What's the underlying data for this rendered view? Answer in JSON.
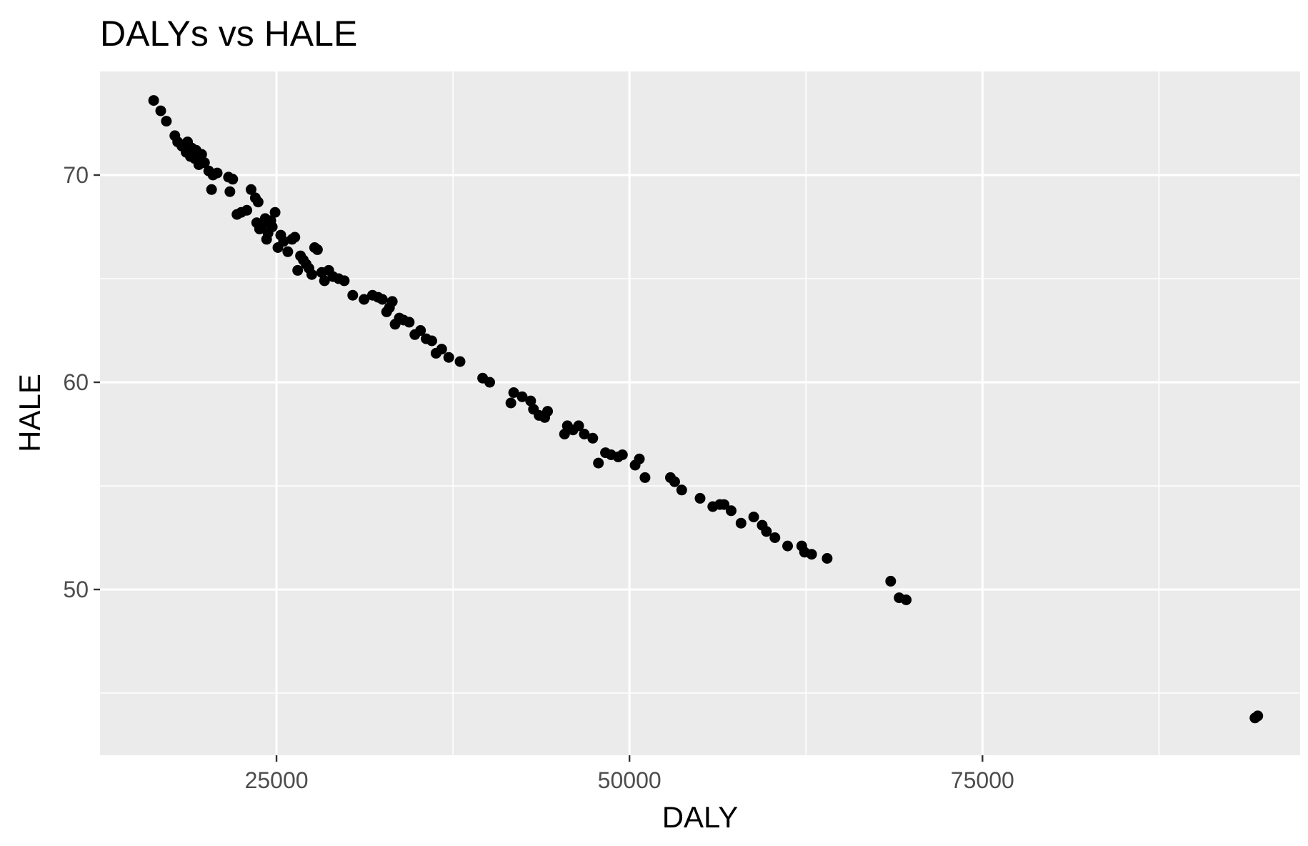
{
  "chart_data": {
    "type": "scatter",
    "title": "DALYs vs HALE",
    "xlabel": "DALY",
    "ylabel": "HALE",
    "xlim": [
      12500,
      97500
    ],
    "ylim": [
      42,
      75
    ],
    "x_ticks": [
      25000,
      50000,
      75000
    ],
    "x_tick_labels": [
      "25000",
      "50000",
      "75000"
    ],
    "y_ticks": [
      50,
      60,
      70
    ],
    "y_tick_labels": [
      "50",
      "60",
      "70"
    ],
    "grid": true,
    "legend": "none",
    "point_color": "#000000",
    "panel_background": "#ebebeb",
    "x": [
      16300,
      16800,
      17200,
      17800,
      18000,
      18300,
      18600,
      18700,
      18900,
      19000,
      19200,
      19300,
      19500,
      19700,
      19900,
      20200,
      20400,
      20500,
      20800,
      21600,
      21700,
      21900,
      22200,
      22500,
      22900,
      23200,
      23500,
      23700,
      23900,
      23600,
      23800,
      24000,
      24200,
      24400,
      24300,
      24600,
      24700,
      24900,
      25100,
      25300,
      25500,
      25800,
      26100,
      26300,
      26500,
      26700,
      26900,
      27100,
      27300,
      27500,
      27700,
      27900,
      28200,
      28400,
      28700,
      29000,
      29400,
      29800,
      30400,
      31200,
      31800,
      32200,
      32500,
      32800,
      33000,
      33200,
      33400,
      33700,
      34000,
      34400,
      34800,
      35200,
      35600,
      36000,
      36300,
      36700,
      37200,
      38000,
      39600,
      40100,
      41600,
      41800,
      42400,
      43000,
      43200,
      43600,
      44000,
      44200,
      45400,
      45600,
      46000,
      46400,
      46800,
      47400,
      47800,
      48300,
      48700,
      49200,
      49500,
      50400,
      50700,
      51100,
      52900,
      53200,
      53700,
      55000,
      55900,
      56400,
      56700,
      57200,
      57900,
      58800,
      59400,
      59700,
      60300,
      61200,
      62200,
      62400,
      62900,
      64000,
      68500,
      69100,
      69600,
      94300,
      94500
    ],
    "y": [
      73.6,
      73.1,
      72.6,
      71.9,
      71.6,
      71.4,
      71.1,
      71.6,
      70.9,
      71.3,
      70.8,
      71.2,
      70.5,
      71.0,
      70.6,
      70.2,
      69.3,
      70.0,
      70.1,
      69.9,
      69.2,
      69.8,
      68.1,
      68.2,
      68.3,
      69.3,
      68.9,
      68.7,
      67.5,
      67.7,
      67.4,
      67.6,
      67.9,
      67.2,
      66.9,
      67.8,
      67.5,
      68.2,
      66.5,
      67.1,
      66.8,
      66.3,
      66.9,
      67.0,
      65.4,
      66.1,
      65.9,
      65.7,
      65.5,
      65.2,
      66.5,
      66.4,
      65.3,
      64.9,
      65.4,
      65.1,
      65.0,
      64.9,
      64.2,
      64.0,
      64.2,
      64.1,
      64.0,
      63.4,
      63.6,
      63.9,
      62.8,
      63.1,
      63.0,
      62.9,
      62.3,
      62.5,
      62.1,
      62.0,
      61.4,
      61.6,
      61.2,
      61.0,
      60.2,
      60.0,
      59.0,
      59.5,
      59.3,
      59.1,
      58.7,
      58.4,
      58.3,
      58.6,
      57.5,
      57.9,
      57.7,
      57.9,
      57.5,
      57.3,
      56.1,
      56.6,
      56.5,
      56.4,
      56.5,
      56.0,
      56.3,
      55.4,
      55.4,
      55.2,
      54.8,
      54.4,
      54.0,
      54.1,
      54.1,
      53.8,
      53.2,
      53.5,
      53.1,
      52.8,
      52.5,
      52.1,
      52.1,
      51.8,
      51.7,
      51.5,
      50.4,
      49.6,
      49.5,
      43.8,
      43.9
    ]
  }
}
